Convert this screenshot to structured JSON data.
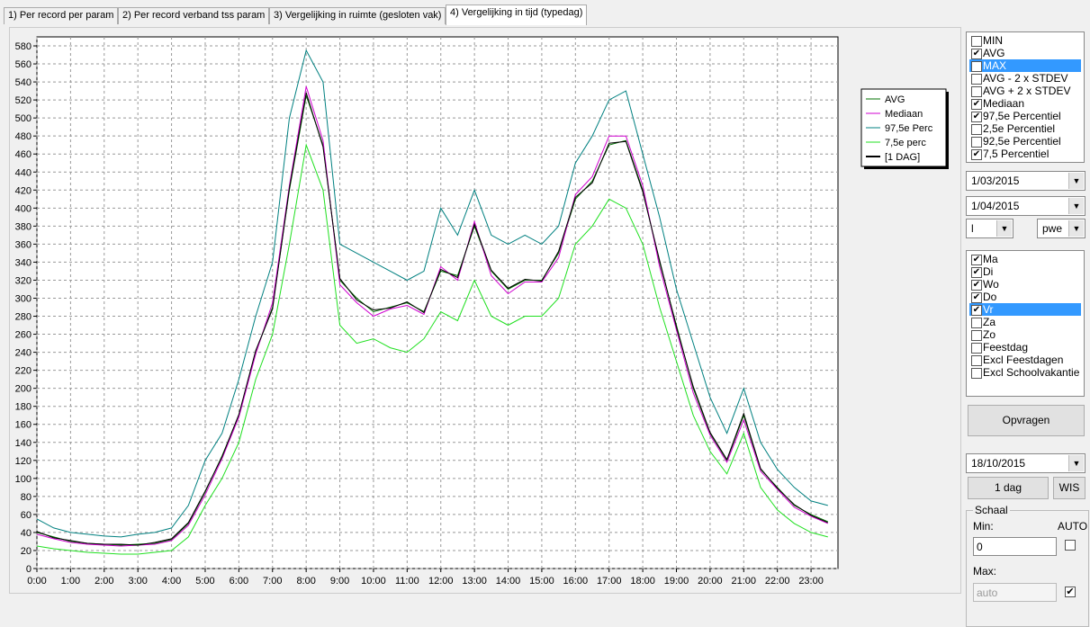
{
  "tabs": [
    "1) Per record per  param",
    "2) Per record verband tss param",
    "3) Vergelijking in ruimte (gesloten vak)",
    "4) Vergelijking in tijd (typedag)"
  ],
  "active_tab": 3,
  "chart_data": {
    "type": "line",
    "legend": "right",
    "grid": true,
    "x": [
      0,
      0.5,
      1,
      1.5,
      2,
      2.5,
      3,
      3.5,
      4,
      4.5,
      5,
      5.5,
      6,
      6.5,
      7,
      7.5,
      8,
      8.5,
      9,
      9.5,
      10,
      10.5,
      11,
      11.5,
      12,
      12.5,
      13,
      13.5,
      14,
      14.5,
      15,
      15.5,
      16,
      16.5,
      17,
      17.5,
      18,
      18.5,
      19,
      19.5,
      20,
      20.5,
      21,
      21.5,
      22,
      22.5,
      23,
      23.5
    ],
    "xlim": [
      0,
      23.8
    ],
    "xticks": [
      {
        "value": 0,
        "label": "0:00"
      },
      {
        "value": 1,
        "label": "1:00"
      },
      {
        "value": 2,
        "label": "2:00"
      },
      {
        "value": 3,
        "label": "3:00"
      },
      {
        "value": 4,
        "label": "4:00"
      },
      {
        "value": 5,
        "label": "5:00"
      },
      {
        "value": 6,
        "label": "6:00"
      },
      {
        "value": 7,
        "label": "7:00"
      },
      {
        "value": 8,
        "label": "8:00"
      },
      {
        "value": 9,
        "label": "9:00"
      },
      {
        "value": 10,
        "label": "10:00"
      },
      {
        "value": 11,
        "label": "11:00"
      },
      {
        "value": 12,
        "label": "12:00"
      },
      {
        "value": 13,
        "label": "13:00"
      },
      {
        "value": 14,
        "label": "14:00"
      },
      {
        "value": 15,
        "label": "15:00"
      },
      {
        "value": 16,
        "label": "16:00"
      },
      {
        "value": 17,
        "label": "17:00"
      },
      {
        "value": 18,
        "label": "18:00"
      },
      {
        "value": 19,
        "label": "19:00"
      },
      {
        "value": 20,
        "label": "20:00"
      },
      {
        "value": 21,
        "label": "21:00"
      },
      {
        "value": 22,
        "label": "22:00"
      },
      {
        "value": 23,
        "label": "23:00"
      }
    ],
    "ylim": [
      0,
      590
    ],
    "yticks": [
      0,
      20,
      40,
      60,
      80,
      100,
      120,
      140,
      160,
      180,
      200,
      220,
      240,
      260,
      280,
      300,
      320,
      340,
      360,
      380,
      400,
      420,
      440,
      460,
      480,
      500,
      520,
      540,
      560,
      580
    ],
    "series": [
      {
        "name": "AVG",
        "color": "#007000",
        "values": [
          40,
          35,
          30,
          28,
          27,
          26,
          27,
          28,
          32,
          50,
          85,
          125,
          170,
          240,
          290,
          420,
          525,
          470,
          320,
          300,
          285,
          290,
          295,
          285,
          330,
          325,
          380,
          330,
          310,
          320,
          320,
          350,
          410,
          430,
          470,
          475,
          420,
          340,
          270,
          200,
          150,
          120,
          170,
          110,
          90,
          70,
          60,
          52
        ]
      },
      {
        "name": "Mediaan",
        "color": "#d000d0",
        "values": [
          38,
          33,
          29,
          27,
          26,
          25,
          26,
          27,
          31,
          48,
          82,
          122,
          168,
          238,
          295,
          425,
          535,
          475,
          315,
          295,
          280,
          288,
          292,
          282,
          335,
          320,
          385,
          325,
          305,
          318,
          318,
          345,
          415,
          435,
          480,
          480,
          425,
          335,
          265,
          195,
          148,
          118,
          165,
          108,
          88,
          68,
          58,
          50
        ]
      },
      {
        "name": "97,5e Perc",
        "color": "#008080",
        "values": [
          55,
          45,
          40,
          38,
          36,
          35,
          38,
          40,
          45,
          70,
          120,
          150,
          210,
          280,
          340,
          500,
          575,
          540,
          360,
          350,
          340,
          330,
          320,
          330,
          400,
          370,
          420,
          370,
          360,
          370,
          360,
          380,
          450,
          480,
          520,
          530,
          460,
          390,
          310,
          250,
          190,
          150,
          200,
          140,
          110,
          90,
          75,
          70
        ]
      },
      {
        "name": "7,5e perc",
        "color": "#20e020",
        "values": [
          25,
          22,
          20,
          18,
          17,
          16,
          16,
          18,
          20,
          35,
          70,
          100,
          140,
          210,
          260,
          360,
          470,
          420,
          270,
          250,
          255,
          245,
          240,
          255,
          285,
          275,
          320,
          280,
          270,
          280,
          280,
          300,
          360,
          380,
          410,
          400,
          360,
          290,
          230,
          170,
          130,
          105,
          150,
          90,
          65,
          50,
          40,
          35
        ]
      },
      {
        "name": "[1 DAG]",
        "color": "#000000",
        "values": [
          41,
          34,
          31,
          28,
          27,
          27,
          26,
          29,
          33,
          51,
          86,
          124,
          171,
          242,
          288,
          422,
          528,
          468,
          322,
          298,
          287,
          289,
          296,
          284,
          332,
          323,
          382,
          331,
          311,
          321,
          319,
          352,
          412,
          428,
          472,
          474,
          418,
          342,
          268,
          202,
          151,
          121,
          172,
          111,
          89,
          71,
          59,
          51
        ]
      }
    ]
  },
  "checklist": [
    {
      "label": "MIN",
      "checked": false
    },
    {
      "label": "AVG",
      "checked": true
    },
    {
      "label": "MAX",
      "checked": false,
      "selected": true
    },
    {
      "label": "AVG - 2 x STDEV",
      "checked": false
    },
    {
      "label": "AVG + 2 x STDEV",
      "checked": false
    },
    {
      "label": "Mediaan",
      "checked": true
    },
    {
      "label": "97,5e Percentiel",
      "checked": true
    },
    {
      "label": "2,5e Percentiel",
      "checked": false
    },
    {
      "label": "92,5e Percentiel",
      "checked": false
    },
    {
      "label": "7,5 Percentiel",
      "checked": true
    }
  ],
  "date_from": "1/03/2015",
  "date_to": "1/04/2015",
  "combo_left": "l",
  "combo_right": "pwe",
  "days": [
    {
      "label": "Ma",
      "checked": true
    },
    {
      "label": "Di",
      "checked": true
    },
    {
      "label": "Wo",
      "checked": true
    },
    {
      "label": "Do",
      "checked": true
    },
    {
      "label": "Vr",
      "checked": true,
      "selected": true
    },
    {
      "label": "Za",
      "checked": false
    },
    {
      "label": "Zo",
      "checked": false
    },
    {
      "label": "Feestdag",
      "checked": false
    },
    {
      "label": "Excl Feestdagen",
      "checked": false
    },
    {
      "label": "Excl Schoolvakantie",
      "checked": false
    }
  ],
  "button_query": "Opvragen",
  "date_single": "18/10/2015",
  "button_day": "1 dag",
  "button_clear": "WIS",
  "scale": {
    "title": "Schaal",
    "min_label": "Min:",
    "auto_label": "AUTO",
    "min_value": "0",
    "min_auto": false,
    "max_label": "Max:",
    "max_value": "auto",
    "max_auto": true
  }
}
